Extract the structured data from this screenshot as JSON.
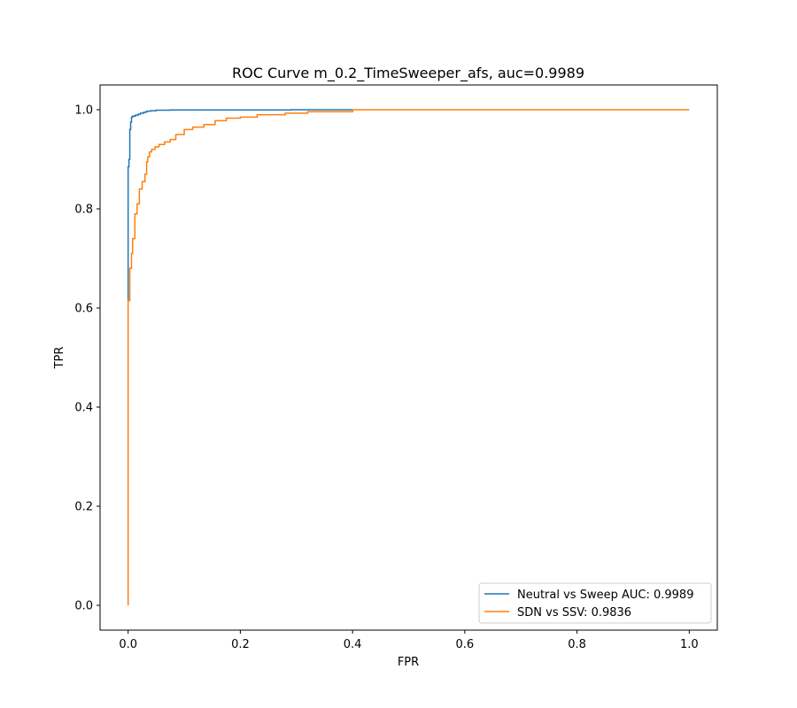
{
  "chart_data": {
    "type": "line",
    "title": "ROC Curve m_0.2_TimeSweeper_afs, auc=0.9989",
    "xlabel": "FPR",
    "ylabel": "TPR",
    "xlim": [
      -0.05,
      1.05
    ],
    "ylim": [
      -0.05,
      1.05
    ],
    "xticks": [
      0.0,
      0.2,
      0.4,
      0.6,
      0.8,
      1.0
    ],
    "yticks": [
      0.0,
      0.2,
      0.4,
      0.6,
      0.8,
      1.0
    ],
    "xtick_labels": [
      "0.0",
      "0.2",
      "0.4",
      "0.6",
      "0.8",
      "1.0"
    ],
    "ytick_labels": [
      "0.0",
      "0.2",
      "0.4",
      "0.6",
      "0.8",
      "1.0"
    ],
    "grid": false,
    "legend_position": "lower-right",
    "series": [
      {
        "name": "Neutral vs Sweep AUC: 0.9989",
        "color": "#1f77b4",
        "x": [
          0.0,
          0.0,
          0.0015,
          0.0015,
          0.003,
          0.003,
          0.0045,
          0.0045,
          0.006,
          0.006,
          0.008,
          0.008,
          0.013,
          0.013,
          0.018,
          0.018,
          0.022,
          0.022,
          0.028,
          0.028,
          0.033,
          0.033,
          0.04,
          0.04,
          0.05,
          0.05,
          0.075,
          0.075,
          0.29,
          0.29,
          0.4
        ],
        "y": [
          0.615,
          0.885,
          0.885,
          0.9,
          0.9,
          0.96,
          0.96,
          0.975,
          0.975,
          0.985,
          0.985,
          0.987,
          0.987,
          0.989,
          0.989,
          0.991,
          0.991,
          0.993,
          0.993,
          0.995,
          0.995,
          0.997,
          0.997,
          0.998,
          0.998,
          0.999,
          0.999,
          0.9995,
          0.9995,
          1.0,
          1.0
        ]
      },
      {
        "name": "SDN vs SSV: 0.9836",
        "color": "#ff7f0e",
        "x": [
          0.0,
          0.0,
          0.003,
          0.003,
          0.006,
          0.006,
          0.008,
          0.008,
          0.012,
          0.012,
          0.016,
          0.016,
          0.02,
          0.02,
          0.025,
          0.025,
          0.03,
          0.03,
          0.033,
          0.033,
          0.035,
          0.035,
          0.038,
          0.038,
          0.042,
          0.042,
          0.048,
          0.048,
          0.055,
          0.055,
          0.065,
          0.065,
          0.075,
          0.075,
          0.085,
          0.085,
          0.1,
          0.1,
          0.115,
          0.115,
          0.135,
          0.135,
          0.155,
          0.155,
          0.175,
          0.175,
          0.2,
          0.2,
          0.23,
          0.23,
          0.28,
          0.28,
          0.32,
          0.32,
          0.4,
          0.4,
          1.0
        ],
        "y": [
          0.0,
          0.615,
          0.615,
          0.68,
          0.68,
          0.71,
          0.71,
          0.74,
          0.74,
          0.79,
          0.79,
          0.81,
          0.81,
          0.84,
          0.84,
          0.855,
          0.855,
          0.87,
          0.87,
          0.895,
          0.895,
          0.905,
          0.905,
          0.915,
          0.915,
          0.92,
          0.92,
          0.925,
          0.925,
          0.93,
          0.93,
          0.935,
          0.935,
          0.94,
          0.94,
          0.95,
          0.95,
          0.96,
          0.96,
          0.965,
          0.965,
          0.97,
          0.97,
          0.978,
          0.978,
          0.983,
          0.983,
          0.985,
          0.985,
          0.99,
          0.99,
          0.993,
          0.993,
          0.996,
          0.996,
          1.0,
          1.0
        ]
      }
    ]
  }
}
